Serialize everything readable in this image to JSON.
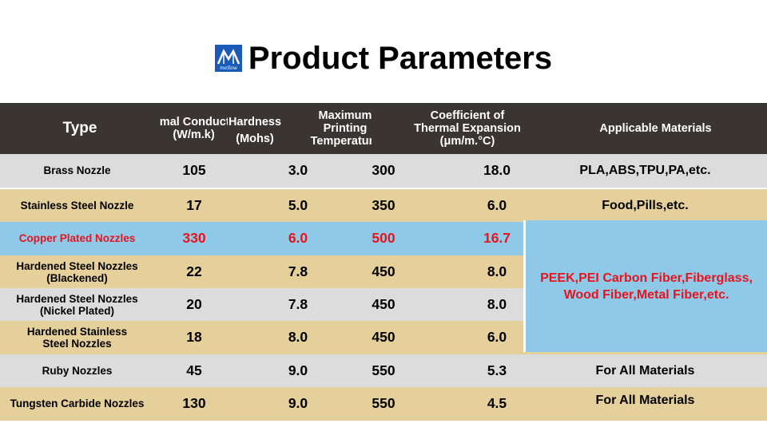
{
  "title": "Product Parameters",
  "logo": {
    "icon": "mellow-logo-icon",
    "text": "mellow",
    "color": "#1a5bb8"
  },
  "headers": {
    "type": "Type",
    "thermal_conductivity_l1": "Thermal Conductivity",
    "thermal_conductivity_l2": "(W/m.k)",
    "hardness_l1": "Hardness",
    "hardness_l2": "(Mohs)",
    "max_temp_l1": "Maximum",
    "max_temp_l2": "Printing",
    "max_temp_l3": "Temperature",
    "cte_l1": "Coefficient of",
    "cte_l2": "Thermal Expansion",
    "cte_l3": "(μm/m.°C)",
    "materials": "Applicable Materials"
  },
  "rows": [
    {
      "type_l1": "Brass Nozzle",
      "type_l2": "",
      "tc": "105",
      "hardness": "3.0",
      "max_temp": "300",
      "cte": "18.0",
      "materials": "PLA,ABS,TPU,PA,etc."
    },
    {
      "type_l1": "Stainless Steel Nozzle",
      "type_l2": "",
      "tc": "17",
      "hardness": "5.0",
      "max_temp": "350",
      "cte": "6.0",
      "materials": "Food,Pills,etc."
    },
    {
      "type_l1": "Copper Plated Nozzles",
      "type_l2": "",
      "tc": "330",
      "hardness": "6.0",
      "max_temp": "500",
      "cte": "16.7"
    },
    {
      "type_l1": "Hardened Steel Nozzles",
      "type_l2": "(Blackened)",
      "tc": "22",
      "hardness": "7.8",
      "max_temp": "450",
      "cte": "8.0"
    },
    {
      "type_l1": "Hardened Steel Nozzles",
      "type_l2": "(Nickel Plated)",
      "tc": "20",
      "hardness": "7.8",
      "max_temp": "450",
      "cte": "8.0"
    },
    {
      "type_l1": "Hardened Stainless",
      "type_l2": "Steel Nozzles",
      "tc": "18",
      "hardness": "8.0",
      "max_temp": "450",
      "cte": "6.0"
    },
    {
      "type_l1": "Ruby Nozzles",
      "type_l2": "",
      "tc": "45",
      "hardness": "9.0",
      "max_temp": "550",
      "cte": "5.3",
      "materials": "For All Materials"
    },
    {
      "type_l1": "Tungsten Carbide Nozzles",
      "type_l2": "",
      "tc": "130",
      "hardness": "9.0",
      "max_temp": "550",
      "cte": "4.5",
      "materials": "For All Materials"
    }
  ],
  "merged_materials_l1": "PEEK,PEI Carbon Fiber,Fiberglass,",
  "merged_materials_l2": "Wood Fiber,Metal Fiber,etc.",
  "colors": {
    "header_bg": "#3a3531",
    "row_grey": "#dcdcdc",
    "row_tan": "#e5cf9a",
    "row_blue": "#8fc9e8",
    "highlight_red": "#e8141d"
  }
}
